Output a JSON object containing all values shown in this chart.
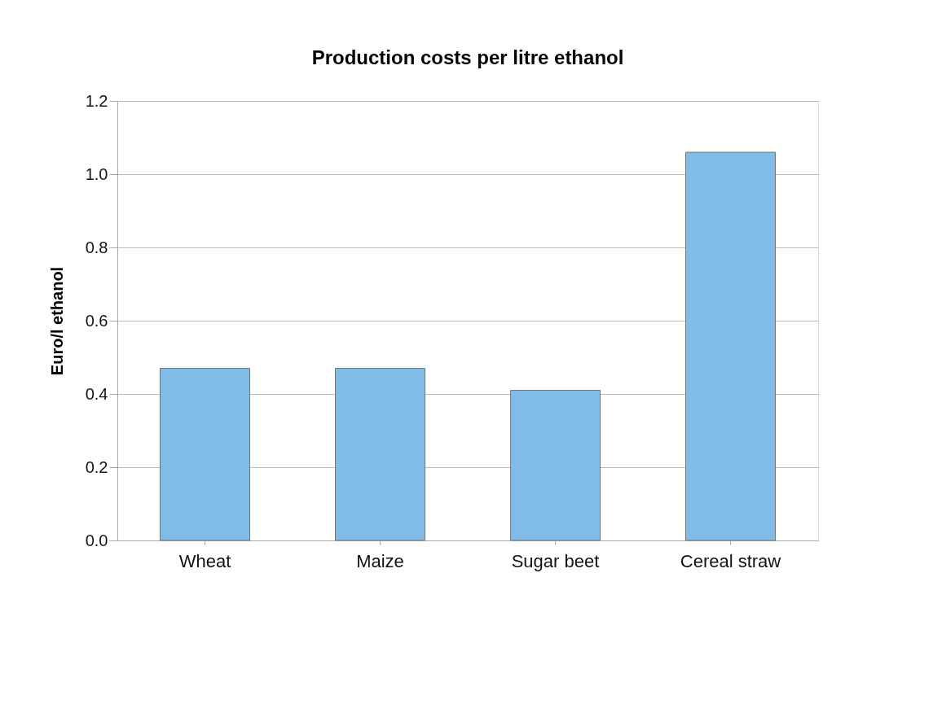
{
  "chart_data": {
    "type": "bar",
    "title": "Production costs per litre ethanol",
    "ylabel": "Euro/l ethanol",
    "categories": [
      "Wheat",
      "Maize",
      "Sugar beet",
      "Cereal straw"
    ],
    "values": [
      0.47,
      0.47,
      0.41,
      1.06
    ],
    "color": "#80bce6",
    "ylim": [
      0,
      1.2
    ],
    "yticks": [
      {
        "value": 0,
        "label": "0.0"
      },
      {
        "value": 0.2,
        "label": "0.2"
      },
      {
        "value": 0.4,
        "label": "0.4"
      },
      {
        "value": 0.6,
        "label": "0.6"
      },
      {
        "value": 0.8,
        "label": "0.8"
      },
      {
        "value": 1.0,
        "label": "1.0"
      },
      {
        "value": 1.2,
        "label": "1.2"
      }
    ],
    "grid": "y"
  }
}
